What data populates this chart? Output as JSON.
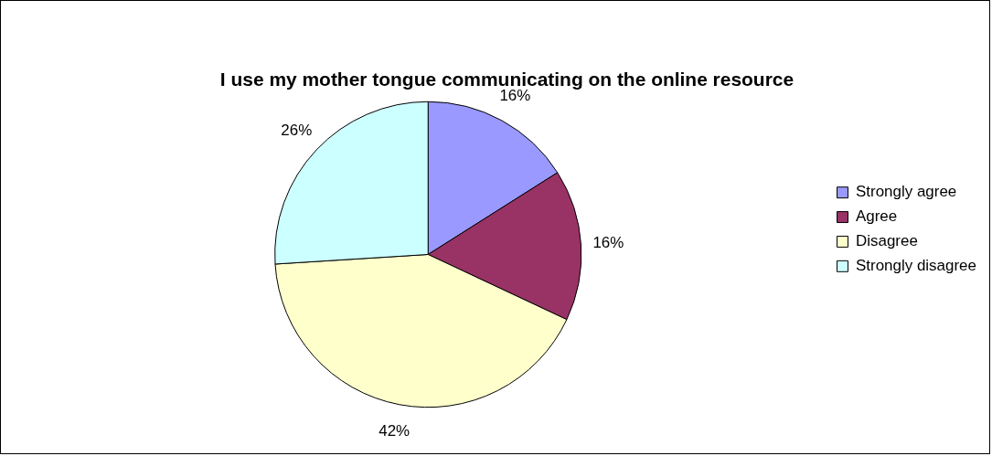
{
  "chart_data": {
    "type": "pie",
    "title": "I use my mother tongue communicating on the online resource",
    "categories": [
      "Strongly agree",
      "Agree",
      "Disagree",
      "Strongly disagree"
    ],
    "values": [
      16,
      16,
      42,
      26
    ],
    "colors": [
      "#9999ff",
      "#993366",
      "#ffffcc",
      "#ccffff"
    ],
    "value_labels": [
      "16%",
      "16%",
      "42%",
      "26%"
    ],
    "legend": "right"
  }
}
